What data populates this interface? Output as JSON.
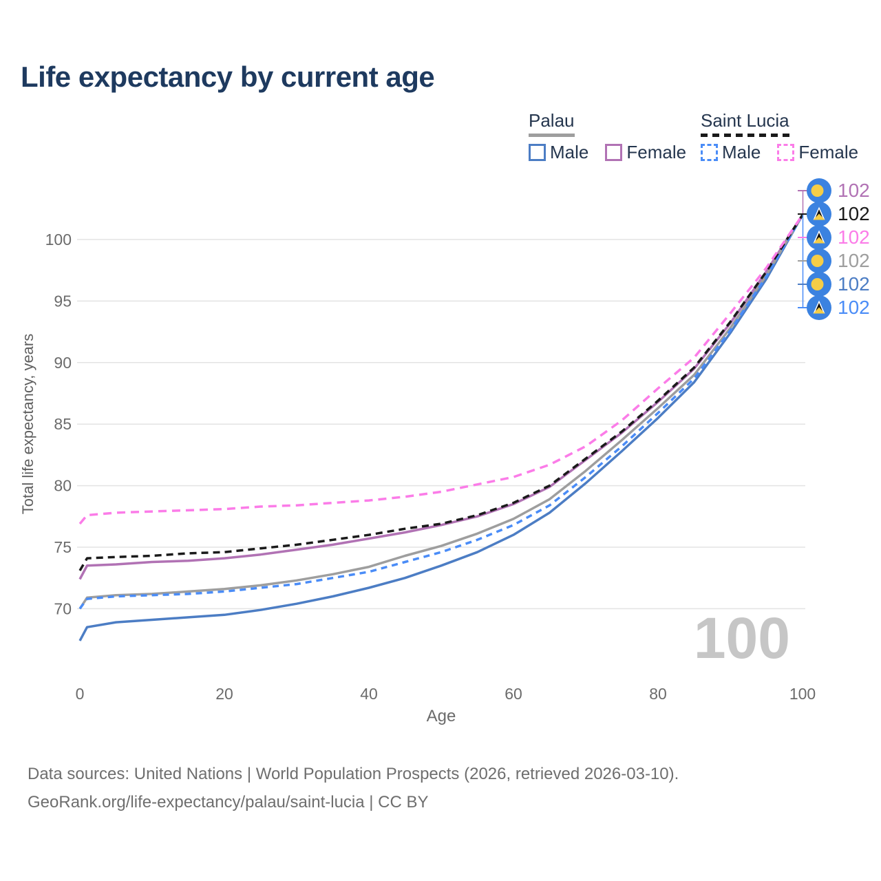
{
  "title": "Life expectancy by current age",
  "legend": {
    "groups": [
      {
        "country": "Palau",
        "underline_style": "solid",
        "underline_color": "#9e9e9e",
        "items": [
          {
            "label": "Male",
            "color": "#4c7dc4",
            "dashed": false
          },
          {
            "label": "Female",
            "color": "#b172b4",
            "dashed": false
          }
        ]
      },
      {
        "country": "Saint Lucia",
        "underline_style": "dashed",
        "underline_color": "#1a1a1a",
        "items": [
          {
            "label": "Male",
            "color": "#4a8cf7",
            "dashed": true
          },
          {
            "label": "Female",
            "color": "#fb7ce8",
            "dashed": true
          }
        ]
      }
    ]
  },
  "chart_data": {
    "type": "line",
    "title": "Life expectancy by current age",
    "xlabel": "Age",
    "ylabel": "Total life expectancy, years",
    "x_ticks": [
      0,
      20,
      40,
      60,
      80,
      100
    ],
    "y_ticks": [
      70,
      75,
      80,
      85,
      90,
      95,
      100
    ],
    "xlim": [
      0,
      100
    ],
    "ylim": [
      66.5,
      103
    ],
    "grid": "horizontal-only",
    "legend_position": "top-right",
    "age_counter": "100",
    "x": [
      0,
      1,
      5,
      10,
      15,
      20,
      25,
      30,
      35,
      40,
      45,
      50,
      55,
      60,
      65,
      70,
      75,
      80,
      85,
      90,
      95,
      100
    ],
    "series": [
      {
        "id": "palau-male",
        "name": "Palau Male",
        "country": "Palau",
        "sex": "male",
        "color": "#4c7dc4",
        "dash": null,
        "values": [
          67.4,
          68.5,
          68.9,
          69.1,
          69.3,
          69.5,
          69.9,
          70.4,
          71.0,
          71.7,
          72.5,
          73.5,
          74.6,
          76.0,
          77.8,
          80.2,
          82.8,
          85.5,
          88.4,
          92.4,
          96.8,
          102
        ]
      },
      {
        "id": "palau-female",
        "name": "Palau Female",
        "country": "Palau",
        "sex": "female",
        "color": "#b172b4",
        "dash": null,
        "values": [
          72.4,
          73.5,
          73.6,
          73.8,
          73.9,
          74.1,
          74.4,
          74.8,
          75.2,
          75.7,
          76.2,
          76.8,
          77.5,
          78.5,
          79.9,
          82.1,
          84.3,
          86.8,
          89.5,
          93.2,
          97.4,
          102
        ]
      },
      {
        "id": "palau-total",
        "name": "Palau Total",
        "country": "Palau",
        "sex": "total",
        "color": "#9e9e9e",
        "dash": null,
        "values": [
          70.0,
          70.9,
          71.1,
          71.2,
          71.4,
          71.6,
          71.9,
          72.3,
          72.8,
          73.4,
          74.3,
          75.1,
          76.1,
          77.3,
          78.9,
          81.2,
          83.7,
          86.3,
          89.0,
          92.8,
          97.1,
          102
        ]
      },
      {
        "id": "saint-lucia-male",
        "name": "Saint Lucia Male",
        "country": "Saint Lucia",
        "sex": "male",
        "color": "#4a8cf7",
        "dash": "9 7",
        "values": [
          70.0,
          70.8,
          71.0,
          71.1,
          71.2,
          71.4,
          71.7,
          72.0,
          72.5,
          73.0,
          73.8,
          74.6,
          75.6,
          76.8,
          78.4,
          80.7,
          83.2,
          85.9,
          88.7,
          92.6,
          97.0,
          102
        ]
      },
      {
        "id": "saint-lucia-total",
        "name": "Saint Lucia Total",
        "country": "Saint Lucia",
        "sex": "total",
        "color": "#1a1a1a",
        "dash": "10 7",
        "values": [
          73.1,
          74.1,
          74.2,
          74.3,
          74.5,
          74.6,
          74.9,
          75.2,
          75.6,
          76.0,
          76.5,
          76.9,
          77.6,
          78.6,
          80.0,
          82.2,
          84.4,
          86.9,
          89.6,
          93.3,
          97.4,
          102
        ]
      },
      {
        "id": "saint-lucia-female",
        "name": "Saint Lucia Female",
        "country": "Saint Lucia",
        "sex": "female",
        "color": "#fb7ce8",
        "dash": "12 8",
        "values": [
          76.9,
          77.6,
          77.8,
          77.9,
          78.0,
          78.1,
          78.3,
          78.4,
          78.6,
          78.8,
          79.1,
          79.5,
          80.1,
          80.7,
          81.7,
          83.2,
          85.3,
          87.9,
          90.4,
          94.0,
          97.7,
          102
        ]
      }
    ]
  },
  "end_labels": [
    {
      "flag": "palau-flag-icon",
      "value": "102",
      "color": "#b172b4",
      "series": "Palau Female"
    },
    {
      "flag": "saint-lucia-flag-icon",
      "value": "102",
      "color": "#1a1a1a",
      "series": "Saint Lucia Total"
    },
    {
      "flag": "saint-lucia-flag-icon",
      "value": "102",
      "color": "#fb7ce8",
      "series": "Saint Lucia Female"
    },
    {
      "flag": "palau-flag-icon",
      "value": "102",
      "color": "#9e9e9e",
      "series": "Palau Total"
    },
    {
      "flag": "palau-flag-icon",
      "value": "102",
      "color": "#4c7dc4",
      "series": "Palau Male"
    },
    {
      "flag": "saint-lucia-flag-icon",
      "value": "102",
      "color": "#4a8cf7",
      "series": "Saint Lucia Male"
    }
  ],
  "footer": {
    "line1": "Data sources: United Nations | World Population Prospects (2026, retrieved 2026-03-10).",
    "line2": "GeoRank.org/life-expectancy/palau/saint-lucia | CC BY"
  },
  "colors": {
    "title": "#1e3a5f",
    "axis_text": "#6b6b6b",
    "axis_title_text": "#5f5f5f",
    "gridline": "#e3e3e3",
    "watermark": "#c6c6c6",
    "footer_text": "#6e6e6e",
    "flag_blue": "#3b82e0",
    "flag_yellow": "#f6cd46"
  }
}
